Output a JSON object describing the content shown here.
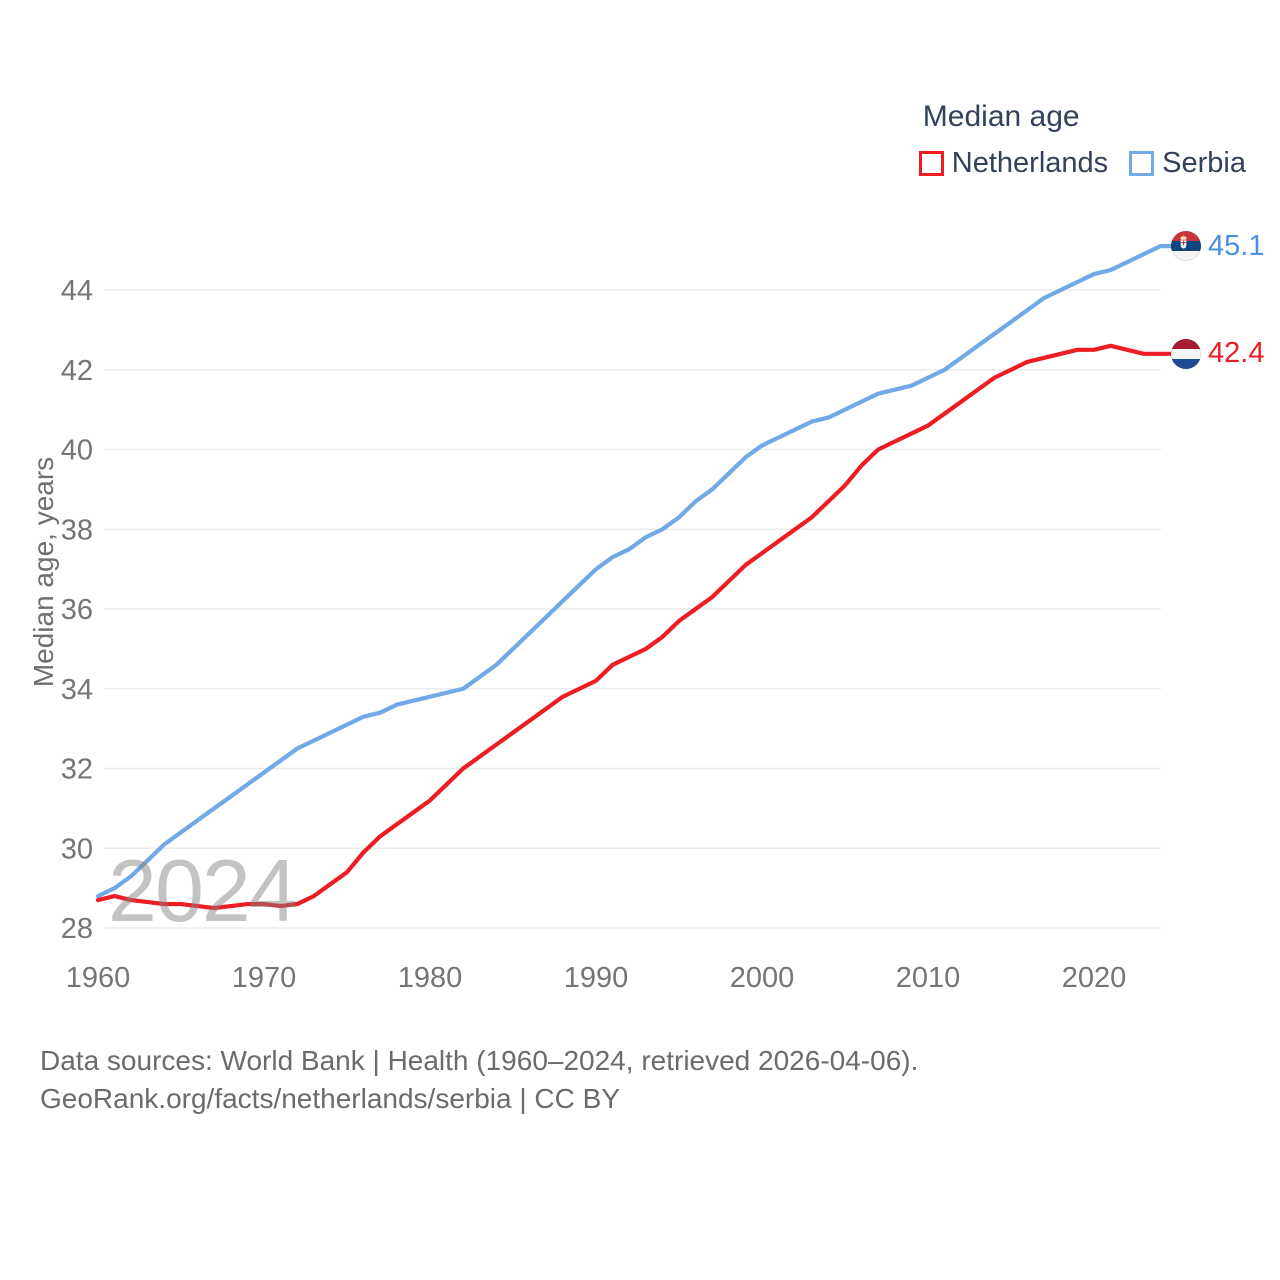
{
  "legend": {
    "title": "Median age",
    "items": [
      {
        "label": "Netherlands",
        "color": "#ee1d23"
      },
      {
        "label": "Serbia",
        "color": "#70a9e5"
      }
    ]
  },
  "watermark": "2024",
  "end_labels": [
    {
      "series": "Serbia",
      "value": "45.1",
      "color": "#4a90e2",
      "flag": "serbia"
    },
    {
      "series": "Netherlands",
      "value": "42.4",
      "color": "#ee1d23",
      "flag": "netherlands"
    }
  ],
  "footer": {
    "line1": "Data sources: World Bank | Health (1960–2024, retrieved 2026-04-06).",
    "line2": "GeoRank.org/facts/netherlands/serbia | CC BY"
  },
  "chart_data": {
    "type": "line",
    "title": "Median age",
    "xlabel": "",
    "ylabel": "Median age, years",
    "x_range": [
      1960,
      2024
    ],
    "ylim": [
      27.6,
      45.6
    ],
    "yticks": [
      28,
      30,
      32,
      34,
      36,
      38,
      40,
      42,
      44
    ],
    "xticks": [
      1960,
      1970,
      1980,
      1990,
      2000,
      2010,
      2020
    ],
    "grid": "horizontal",
    "legend_position": "top-right",
    "x": [
      1960,
      1961,
      1962,
      1963,
      1964,
      1965,
      1966,
      1967,
      1968,
      1969,
      1970,
      1971,
      1972,
      1973,
      1974,
      1975,
      1976,
      1977,
      1978,
      1979,
      1980,
      1981,
      1982,
      1983,
      1984,
      1985,
      1986,
      1987,
      1988,
      1989,
      1990,
      1991,
      1992,
      1993,
      1994,
      1995,
      1996,
      1997,
      1998,
      1999,
      2000,
      2001,
      2002,
      2003,
      2004,
      2005,
      2006,
      2007,
      2008,
      2009,
      2010,
      2011,
      2012,
      2013,
      2014,
      2015,
      2016,
      2017,
      2018,
      2019,
      2020,
      2021,
      2022,
      2023,
      2024
    ],
    "series": [
      {
        "name": "Netherlands",
        "color": "#ee1d23",
        "end_value": 42.4,
        "values": [
          28.7,
          28.8,
          28.7,
          28.65,
          28.6,
          28.6,
          28.55,
          28.5,
          28.55,
          28.6,
          28.6,
          28.55,
          28.6,
          28.8,
          29.1,
          29.4,
          29.9,
          30.3,
          30.6,
          30.9,
          31.2,
          31.6,
          32.0,
          32.3,
          32.6,
          32.9,
          33.2,
          33.5,
          33.8,
          34.0,
          34.2,
          34.6,
          34.8,
          35.0,
          35.3,
          35.7,
          36.0,
          36.3,
          36.7,
          37.1,
          37.4,
          37.7,
          38.0,
          38.3,
          38.7,
          39.1,
          39.6,
          40.0,
          40.2,
          40.4,
          40.6,
          40.9,
          41.2,
          41.5,
          41.8,
          42.0,
          42.2,
          42.3,
          42.4,
          42.5,
          42.5,
          42.6,
          42.5,
          42.4,
          42.4
        ]
      },
      {
        "name": "Serbia",
        "color": "#70a9e5",
        "end_value": 45.1,
        "values": [
          28.8,
          29.0,
          29.3,
          29.7,
          30.1,
          30.4,
          30.7,
          31.0,
          31.3,
          31.6,
          31.9,
          32.2,
          32.5,
          32.7,
          32.9,
          33.1,
          33.3,
          33.4,
          33.6,
          33.7,
          33.8,
          33.9,
          34.0,
          34.3,
          34.6,
          35.0,
          35.4,
          35.8,
          36.2,
          36.6,
          37.0,
          37.3,
          37.5,
          37.8,
          38.0,
          38.3,
          38.7,
          39.0,
          39.4,
          39.8,
          40.1,
          40.3,
          40.5,
          40.7,
          40.8,
          41.0,
          41.2,
          41.4,
          41.5,
          41.6,
          41.8,
          42.0,
          42.3,
          42.6,
          42.9,
          43.2,
          43.5,
          43.8,
          44.0,
          44.2,
          44.4,
          44.5,
          44.7,
          44.9,
          45.1
        ]
      }
    ]
  }
}
